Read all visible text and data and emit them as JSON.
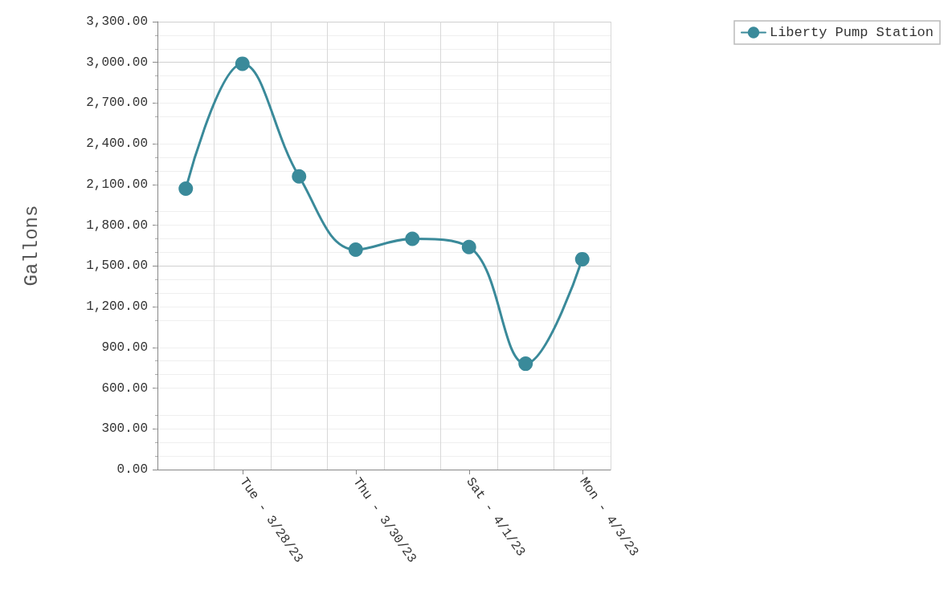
{
  "chart_data": {
    "type": "line",
    "ylabel": "Gallons",
    "categories": [
      null,
      "Tue - 3/28/23",
      null,
      "Thu - 3/30/23",
      null,
      "Sat - 4/1/23",
      null,
      "Mon - 4/3/23"
    ],
    "series": [
      {
        "name": "Liberty Pump Station",
        "color": "#3a8a9a",
        "values": [
          2070,
          2990,
          2160,
          1620,
          1700,
          1640,
          780,
          1550
        ]
      }
    ],
    "ylim": [
      0,
      3300
    ],
    "yticks": [
      {
        "value": 0,
        "label": "0.00"
      },
      {
        "value": 300,
        "label": "300.00"
      },
      {
        "value": 600,
        "label": "600.00"
      },
      {
        "value": 900,
        "label": "900.00"
      },
      {
        "value": 1200,
        "label": "1,200.00"
      },
      {
        "value": 1500,
        "label": "1,500.00"
      },
      {
        "value": 1800,
        "label": "1,800.00"
      },
      {
        "value": 2100,
        "label": "2,100.00"
      },
      {
        "value": 2400,
        "label": "2,400.00"
      },
      {
        "value": 2700,
        "label": "2,700.00"
      },
      {
        "value": 3000,
        "label": "3,000.00"
      },
      {
        "value": 3300,
        "label": "3,300.00"
      }
    ],
    "grid": true,
    "legend": "top right",
    "marker": "circle",
    "line_style": "solid"
  }
}
